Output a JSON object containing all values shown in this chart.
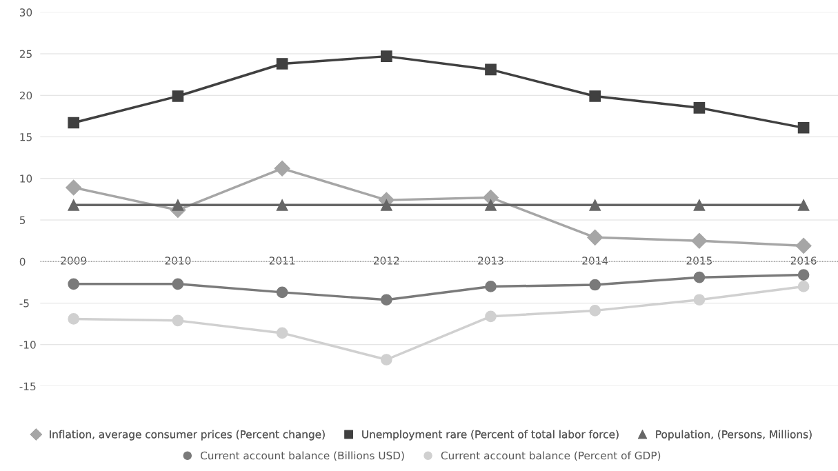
{
  "chart_data": {
    "type": "line",
    "categories": [
      "2009",
      "2010",
      "2011",
      "2012",
      "2013",
      "2014",
      "2015",
      "2016"
    ],
    "series": [
      {
        "name": "Inflation, average consumer prices (Percent change)",
        "color": "#a6a6a6",
        "marker": "diamond",
        "values": [
          8.9,
          6.2,
          11.2,
          7.4,
          7.7,
          2.9,
          2.5,
          1.9
        ]
      },
      {
        "name": "Unemployment rare (Percent of total labor force)",
        "color": "#404040",
        "marker": "square",
        "values": [
          16.7,
          19.9,
          23.8,
          24.7,
          23.1,
          19.9,
          18.5,
          16.1
        ]
      },
      {
        "name": "Population, (Persons, Millions)",
        "color": "#666666",
        "marker": "triangle",
        "values": [
          6.8,
          6.8,
          6.8,
          6.8,
          6.8,
          6.8,
          6.8,
          6.8
        ]
      },
      {
        "name": "Current account balance (Billions USD)",
        "color": "#7a7a7a",
        "marker": "circle",
        "values": [
          -2.7,
          -2.7,
          -3.7,
          -4.6,
          -3.0,
          -2.8,
          -1.9,
          -1.6
        ]
      },
      {
        "name": "Current account balance (Percent of GDP)",
        "color": "#d0d0d0",
        "marker": "circle",
        "values": [
          -6.9,
          -7.1,
          -8.6,
          -11.8,
          -6.6,
          -5.9,
          -4.6,
          -3.0
        ]
      }
    ],
    "ylim": [
      -15,
      30
    ],
    "ref_lines": [
      {
        "axis": "y",
        "value": 0,
        "color": "#999999",
        "line_style": "dotted"
      }
    ],
    "yticks": [
      -15,
      -10,
      -5,
      0,
      5,
      10,
      15,
      20,
      25,
      30
    ],
    "grid": "y",
    "legend": "bottom",
    "line_style": "solid"
  }
}
